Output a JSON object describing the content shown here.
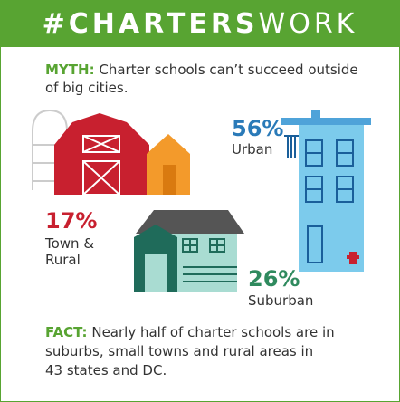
{
  "header": {
    "title_bold": "#CHARTERS",
    "title_light": "WORK"
  },
  "myth": {
    "label": "MYTH:",
    "lines": [
      "Charter schools can’t succeed outside",
      "of big cities."
    ]
  },
  "stats": {
    "urban": {
      "percent": "56%",
      "label": "Urban"
    },
    "town_rural": {
      "percent": "17%",
      "label_lines": [
        "Town &",
        "Rural"
      ]
    },
    "suburban": {
      "percent": "26%",
      "label": "Suburban"
    }
  },
  "fact": {
    "label": "FACT:",
    "lines": [
      "Nearly half of charter schools are in",
      "suburbs, small towns and rural areas in",
      "43 states and DC."
    ]
  }
}
